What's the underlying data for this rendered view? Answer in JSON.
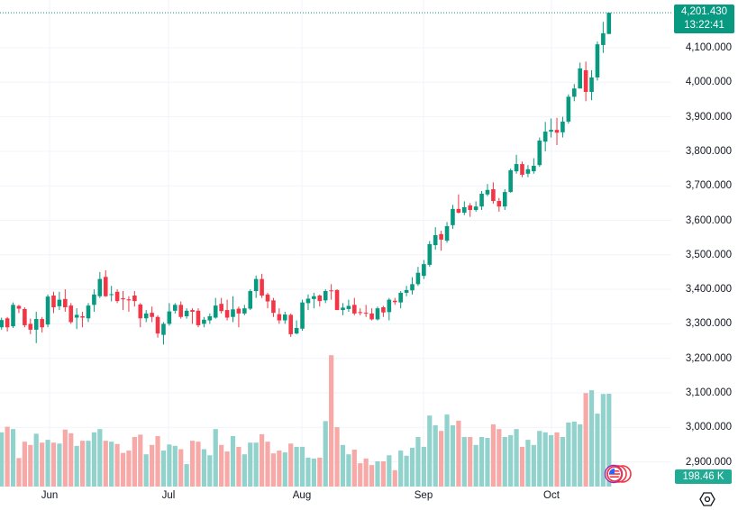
{
  "chart_data": {
    "type": "candlestick",
    "x_ticks": [
      "Jun",
      "Jul",
      "Aug",
      "Sep",
      "Oct"
    ],
    "y_ticks": [
      "4,100.000",
      "4,000.000",
      "3,900.000",
      "3,800.000",
      "3,700.000",
      "3,600.000",
      "3,500.000",
      "3,400.000",
      "3,300.000",
      "3,200.000",
      "3,100.000",
      "3,000.000",
      "2,900.000"
    ],
    "y_tick_values": [
      4100,
      4000,
      3900,
      3800,
      3700,
      3600,
      3500,
      3400,
      3300,
      3200,
      3100,
      3000,
      2900
    ],
    "grid": true,
    "colors": {
      "up": "#089981",
      "down": "#f23645",
      "vol_up": "#92d2cc",
      "vol_down": "#f7a9a7",
      "grid": "#f0f3fa"
    },
    "ohlc": [
      [
        3290,
        3318,
        3283,
        3311
      ],
      [
        3316,
        3320,
        3278,
        3290
      ],
      [
        3293,
        3362,
        3288,
        3355
      ],
      [
        3352,
        3355,
        3331,
        3344
      ],
      [
        3343,
        3348,
        3290,
        3296
      ],
      [
        3300,
        3315,
        3270,
        3283
      ],
      [
        3283,
        3335,
        3244,
        3314
      ],
      [
        3314,
        3320,
        3275,
        3290
      ],
      [
        3298,
        3385,
        3290,
        3379
      ],
      [
        3382,
        3393,
        3331,
        3348
      ],
      [
        3351,
        3393,
        3340,
        3370
      ],
      [
        3372,
        3400,
        3335,
        3348
      ],
      [
        3353,
        3360,
        3300,
        3305
      ],
      [
        3318,
        3345,
        3285,
        3326
      ],
      [
        3322,
        3335,
        3290,
        3318
      ],
      [
        3316,
        3360,
        3305,
        3353
      ],
      [
        3355,
        3400,
        3335,
        3385
      ],
      [
        3380,
        3450,
        3375,
        3430
      ],
      [
        3436,
        3455,
        3378,
        3380
      ],
      [
        3384,
        3410,
        3365,
        3386
      ],
      [
        3393,
        3400,
        3360,
        3366
      ],
      [
        3374,
        3395,
        3340,
        3371
      ],
      [
        3371,
        3380,
        3335,
        3368
      ],
      [
        3382,
        3395,
        3350,
        3366
      ],
      [
        3356,
        3360,
        3290,
        3316
      ],
      [
        3316,
        3340,
        3305,
        3330
      ],
      [
        3332,
        3350,
        3305,
        3320
      ],
      [
        3320,
        3325,
        3260,
        3272
      ],
      [
        3268,
        3305,
        3240,
        3300
      ],
      [
        3300,
        3360,
        3295,
        3336
      ],
      [
        3338,
        3360,
        3330,
        3355
      ],
      [
        3355,
        3365,
        3315,
        3320
      ],
      [
        3322,
        3345,
        3315,
        3338
      ],
      [
        3340,
        3345,
        3300,
        3335
      ],
      [
        3338,
        3345,
        3290,
        3296
      ],
      [
        3300,
        3320,
        3290,
        3312
      ],
      [
        3310,
        3330,
        3300,
        3322
      ],
      [
        3318,
        3375,
        3315,
        3353
      ],
      [
        3358,
        3375,
        3330,
        3337
      ],
      [
        3340,
        3370,
        3310,
        3318
      ],
      [
        3320,
        3380,
        3305,
        3342
      ],
      [
        3344,
        3350,
        3290,
        3330
      ],
      [
        3330,
        3355,
        3325,
        3345
      ],
      [
        3344,
        3400,
        3340,
        3395
      ],
      [
        3395,
        3440,
        3375,
        3430
      ],
      [
        3430,
        3445,
        3375,
        3382
      ],
      [
        3385,
        3390,
        3345,
        3365
      ],
      [
        3368,
        3375,
        3320,
        3332
      ],
      [
        3328,
        3345,
        3300,
        3310
      ],
      [
        3310,
        3335,
        3300,
        3327
      ],
      [
        3326,
        3330,
        3262,
        3270
      ],
      [
        3272,
        3310,
        3270,
        3288
      ],
      [
        3286,
        3370,
        3280,
        3362
      ],
      [
        3360,
        3385,
        3340,
        3373
      ],
      [
        3372,
        3390,
        3345,
        3380
      ],
      [
        3382,
        3385,
        3350,
        3366
      ],
      [
        3368,
        3400,
        3360,
        3395
      ],
      [
        3397,
        3415,
        3370,
        3395
      ],
      [
        3398,
        3400,
        3340,
        3340
      ],
      [
        3340,
        3360,
        3325,
        3347
      ],
      [
        3343,
        3370,
        3335,
        3352
      ],
      [
        3355,
        3375,
        3325,
        3330
      ],
      [
        3334,
        3345,
        3325,
        3332
      ],
      [
        3332,
        3355,
        3320,
        3330
      ],
      [
        3330,
        3345,
        3310,
        3313
      ],
      [
        3313,
        3350,
        3310,
        3345
      ],
      [
        3348,
        3352,
        3320,
        3333
      ],
      [
        3334,
        3375,
        3310,
        3370
      ],
      [
        3367,
        3375,
        3355,
        3363
      ],
      [
        3362,
        3395,
        3345,
        3390
      ],
      [
        3390,
        3410,
        3380,
        3398
      ],
      [
        3397,
        3435,
        3385,
        3415
      ],
      [
        3415,
        3465,
        3410,
        3448
      ],
      [
        3439,
        3485,
        3430,
        3473
      ],
      [
        3471,
        3540,
        3465,
        3531
      ],
      [
        3528,
        3580,
        3515,
        3557
      ],
      [
        3560,
        3570,
        3512,
        3544
      ],
      [
        3541,
        3595,
        3535,
        3583
      ],
      [
        3586,
        3645,
        3575,
        3633
      ],
      [
        3633,
        3675,
        3620,
        3622
      ],
      [
        3622,
        3655,
        3615,
        3638
      ],
      [
        3643,
        3650,
        3610,
        3630
      ],
      [
        3630,
        3655,
        3625,
        3640
      ],
      [
        3640,
        3685,
        3630,
        3677
      ],
      [
        3675,
        3705,
        3670,
        3688
      ],
      [
        3690,
        3710,
        3648,
        3656
      ],
      [
        3656,
        3665,
        3625,
        3640
      ],
      [
        3640,
        3690,
        3630,
        3682
      ],
      [
        3682,
        3750,
        3680,
        3745
      ],
      [
        3742,
        3790,
        3735,
        3763
      ],
      [
        3763,
        3770,
        3725,
        3732
      ],
      [
        3735,
        3760,
        3725,
        3748
      ],
      [
        3742,
        3780,
        3735,
        3758
      ],
      [
        3760,
        3840,
        3755,
        3831
      ],
      [
        3828,
        3885,
        3800,
        3857
      ],
      [
        3857,
        3895,
        3840,
        3862
      ],
      [
        3862,
        3897,
        3818,
        3854
      ],
      [
        3855,
        3900,
        3840,
        3886
      ],
      [
        3886,
        3965,
        3880,
        3958
      ],
      [
        3958,
        3995,
        3945,
        3982
      ],
      [
        3982,
        4057,
        3982,
        4040
      ],
      [
        4035,
        4060,
        3945,
        3972
      ],
      [
        3972,
        4035,
        3948,
        4014
      ],
      [
        4014,
        4118,
        4005,
        4110
      ],
      [
        4108,
        4175,
        4085,
        4142
      ],
      [
        4140,
        4201.43,
        4140,
        4201.43
      ]
    ],
    "volume_k": [
      116,
      128,
      123,
      61,
      96,
      89,
      113,
      94,
      100,
      94,
      92,
      122,
      114,
      87,
      98,
      98,
      116,
      123,
      98,
      96,
      91,
      72,
      77,
      106,
      111,
      69,
      89,
      108,
      77,
      90,
      87,
      80,
      48,
      98,
      96,
      80,
      67,
      123,
      89,
      75,
      108,
      85,
      69,
      94,
      94,
      112,
      96,
      71,
      77,
      73,
      92,
      85,
      85,
      62,
      60,
      62,
      140,
      281,
      127,
      89,
      69,
      79,
      50,
      60,
      46,
      54,
      54,
      67,
      35,
      77,
      66,
      83,
      106,
      85,
      152,
      131,
      119,
      154,
      131,
      141,
      106,
      106,
      89,
      106,
      104,
      133,
      123,
      106,
      110,
      123,
      85,
      100,
      89,
      119,
      116,
      110,
      116,
      106,
      137,
      139,
      133,
      200,
      206,
      156,
      198,
      198.46
    ],
    "last_price": "4,201.430",
    "countdown": "13:22:41",
    "last_volume": "198.46 K"
  }
}
